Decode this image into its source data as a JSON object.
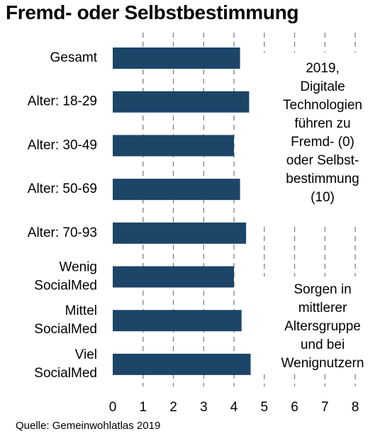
{
  "title": "Fremd- oder Selbstbestimmung",
  "note_top": "2019,\nDigitale\nTechnologien\nführen zu\nFremd- (0)\noder Selbst-\nbestimmung\n(10)",
  "note_bottom": "Sorgen in\nmittlerer\nAltersgruppe\nund bei\nWenignutzern",
  "source": "Quelle: Gemeinwohlatlas 2019",
  "colors": {
    "bar": "#1c4567",
    "grid": "#7f7f7f"
  },
  "chart_data": {
    "type": "bar",
    "orientation": "horizontal",
    "categories": [
      "Gesamt",
      "Alter: 18-29",
      "Alter: 30-49",
      "Alter: 50-69",
      "Alter: 70-93",
      "Wenig SocialMed",
      "Mittel SocialMed",
      "Viel SocialMed"
    ],
    "category_lines": [
      [
        "Gesamt"
      ],
      [
        "Alter: 18-29"
      ],
      [
        "Alter: 30-49"
      ],
      [
        "Alter: 50-69"
      ],
      [
        "Alter: 70-93"
      ],
      [
        "Wenig",
        "SocialMed"
      ],
      [
        "Mittel",
        "SocialMed"
      ],
      [
        "Viel",
        "SocialMed"
      ]
    ],
    "values": [
      4.2,
      4.5,
      4.0,
      4.2,
      4.4,
      4.0,
      4.25,
      4.55
    ],
    "xlim": [
      0,
      8
    ],
    "xticks": [
      "0",
      "1",
      "2",
      "3",
      "4",
      "5",
      "6",
      "7",
      "8"
    ],
    "grid": "vertical dashed"
  }
}
